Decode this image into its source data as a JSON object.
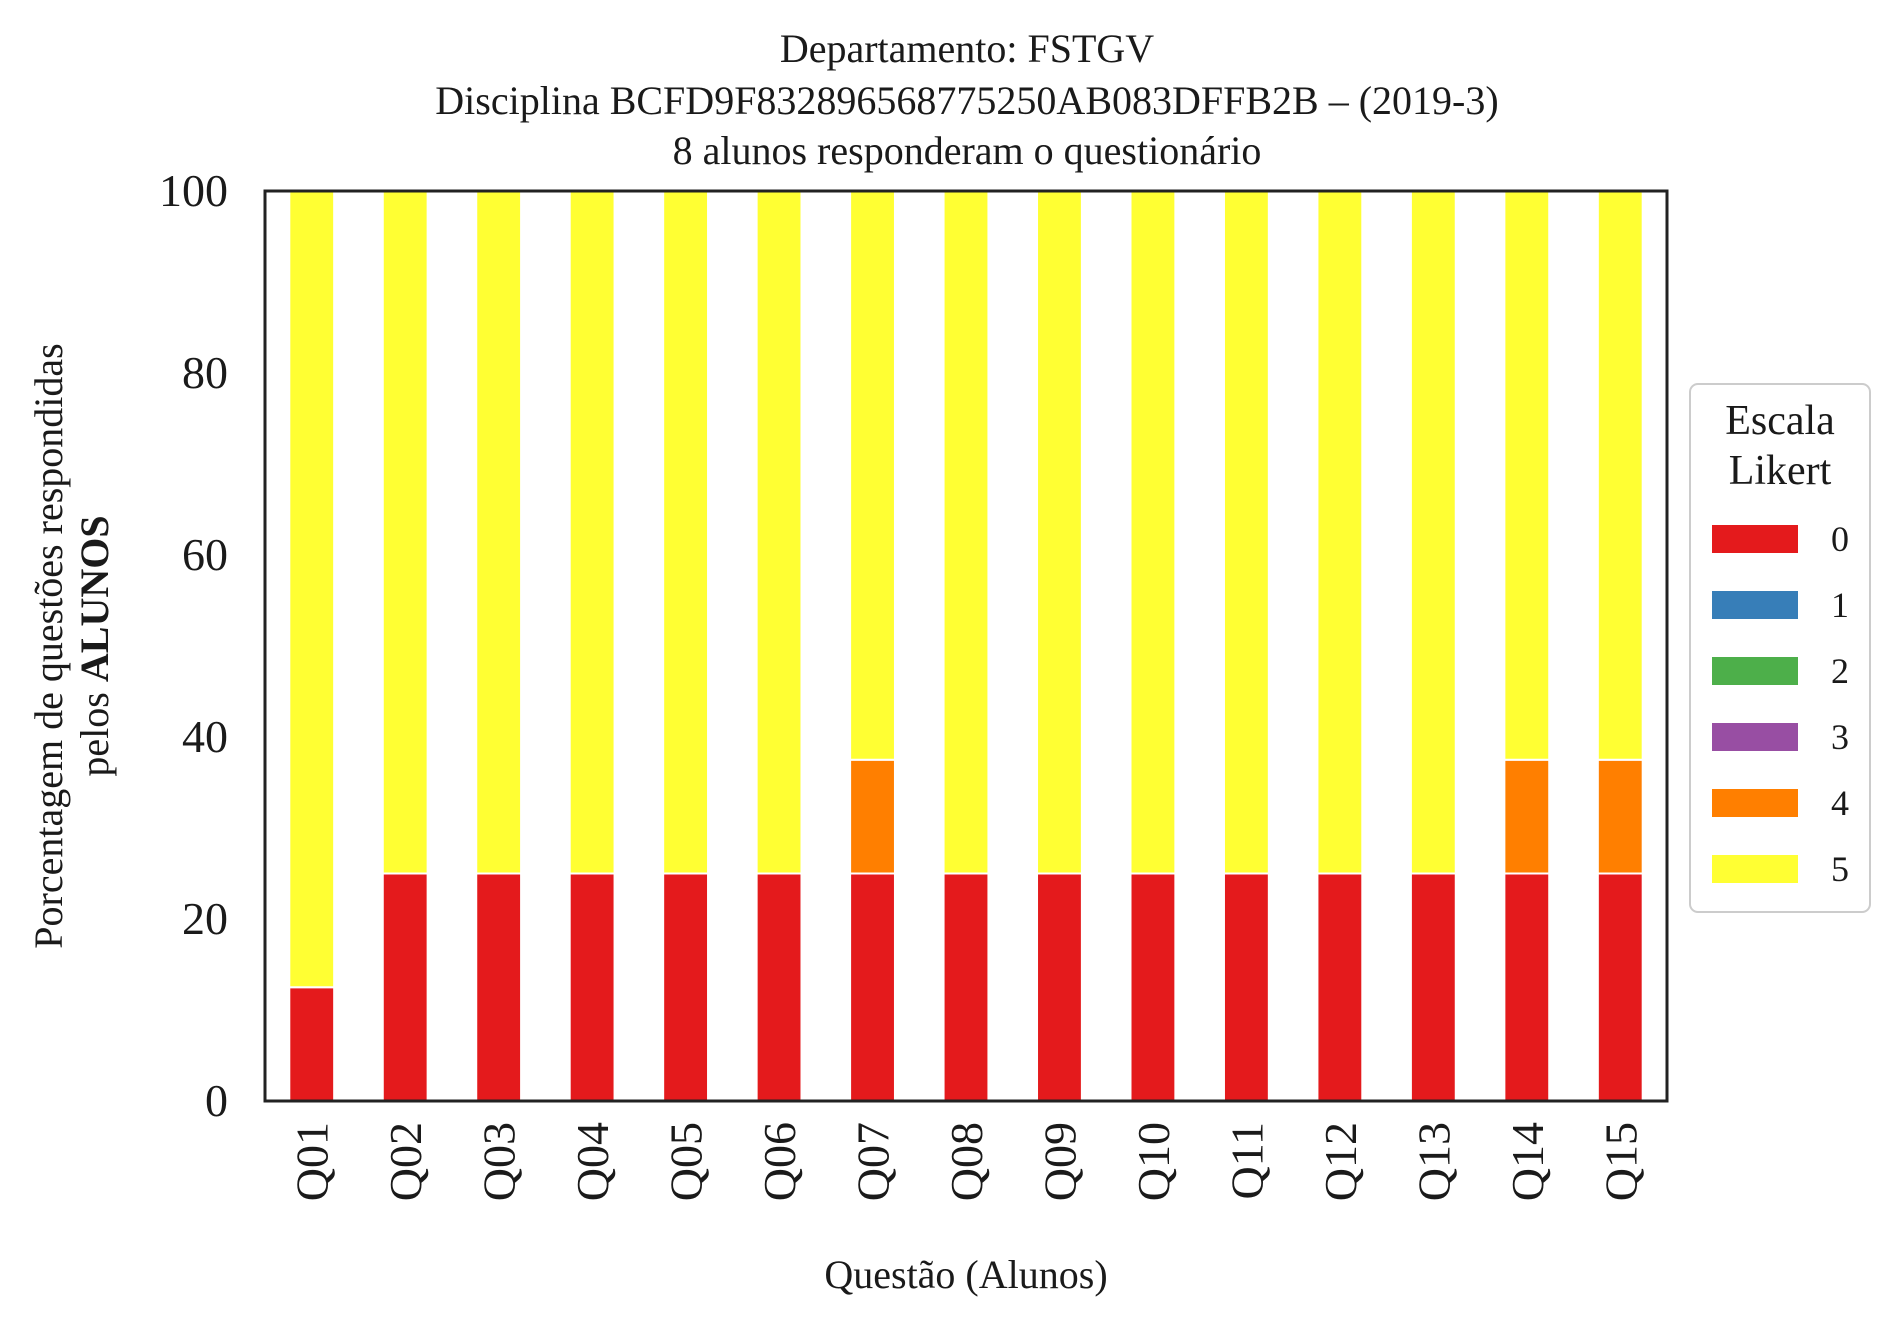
{
  "chart_data": {
    "type": "bar",
    "stacked": true,
    "title_lines": [
      "Departamento: FSTGV",
      "Disciplina BCFD9F832896568775250AB083DFFB2B – (2019-3)",
      "8 alunos responderam o questionário"
    ],
    "xlabel": "Questão (Alunos)",
    "ylabel_line1": "Porcentagem de questões respondidas",
    "ylabel_line2_prefix": "pelos ",
    "ylabel_line2_bold": "ALUNOS",
    "ylim": [
      0,
      100
    ],
    "yticks": [
      "0",
      "20",
      "40",
      "60",
      "80",
      "100"
    ],
    "categories": [
      "Q01",
      "Q02",
      "Q03",
      "Q04",
      "Q05",
      "Q06",
      "Q07",
      "Q08",
      "Q09",
      "Q10",
      "Q11",
      "Q12",
      "Q13",
      "Q14",
      "Q15"
    ],
    "series": [
      {
        "name": "0",
        "color": "#e41a1c",
        "values": [
          12.5,
          25,
          25,
          25,
          25,
          25,
          25,
          25,
          25,
          25,
          25,
          25,
          25,
          25,
          25
        ]
      },
      {
        "name": "1",
        "color": "#377eb8",
        "values": [
          0,
          0,
          0,
          0,
          0,
          0,
          0,
          0,
          0,
          0,
          0,
          0,
          0,
          0,
          0
        ]
      },
      {
        "name": "2",
        "color": "#4daf4a",
        "values": [
          0,
          0,
          0,
          0,
          0,
          0,
          0,
          0,
          0,
          0,
          0,
          0,
          0,
          0,
          0
        ]
      },
      {
        "name": "3",
        "color": "#984ea3",
        "values": [
          0,
          0,
          0,
          0,
          0,
          0,
          0,
          0,
          0,
          0,
          0,
          0,
          0,
          0,
          0
        ]
      },
      {
        "name": "4",
        "color": "#ff7f00",
        "values": [
          0,
          0,
          0,
          0,
          0,
          0,
          12.5,
          0,
          0,
          0,
          0,
          0,
          0,
          12.5,
          12.5
        ]
      },
      {
        "name": "5",
        "color": "#ffff33",
        "values": [
          87.5,
          75,
          75,
          75,
          75,
          75,
          62.5,
          75,
          75,
          75,
          75,
          75,
          75,
          62.5,
          62.5
        ]
      }
    ],
    "legend": {
      "title_lines": [
        "Escala",
        "Likert"
      ],
      "placement": "right"
    },
    "grid": false
  }
}
